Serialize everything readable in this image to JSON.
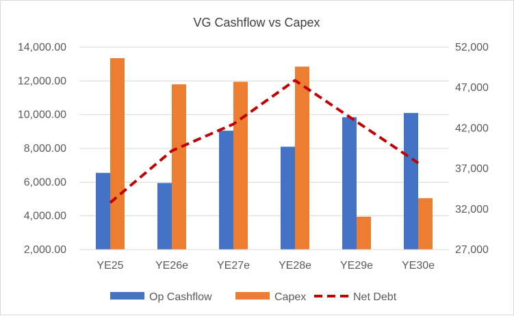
{
  "chart_data": {
    "type": "bar",
    "title": "VG Cashflow vs Capex",
    "categories": [
      "YE25",
      "YE26e",
      "YE27e",
      "YE28e",
      "YE29e",
      "YE30e"
    ],
    "series": [
      {
        "name": "Op Cashflow",
        "kind": "bar",
        "axis": "left",
        "color": "#4472C4",
        "values": [
          6550,
          5950,
          9050,
          8100,
          9850,
          10100
        ]
      },
      {
        "name": "Capex",
        "kind": "bar",
        "axis": "left",
        "color": "#ED7D31",
        "values": [
          13350,
          11800,
          11950,
          12850,
          3950,
          5050
        ]
      },
      {
        "name": "Net Debt",
        "kind": "line",
        "style": "dashed",
        "axis": "right",
        "color": "#C00000",
        "values": [
          32800,
          39200,
          42500,
          47900,
          42800,
          37700
        ]
      }
    ],
    "y_left": {
      "min": 2000,
      "max": 14000,
      "step": 2000,
      "tick_labels": [
        "2,000.00",
        "4,000.00",
        "6,000.00",
        "8,000.00",
        "10,000.00",
        "12,000.00",
        "14,000.00"
      ]
    },
    "y_right": {
      "min": 27000,
      "max": 52000,
      "step": 5000,
      "tick_labels": [
        "27,000",
        "32,000",
        "37,000",
        "42,000",
        "47,000",
        "52,000"
      ]
    },
    "gridlines": true,
    "legend_position": "bottom"
  }
}
